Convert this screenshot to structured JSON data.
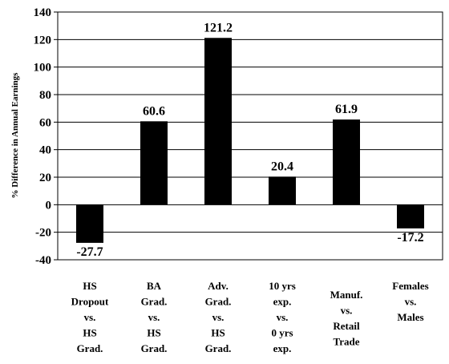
{
  "chart_data": {
    "type": "bar",
    "ylabel": "% Difference in Annual Earnings",
    "ylim": [
      -40,
      140
    ],
    "yticks": [
      "-40",
      "-20",
      "0",
      "20",
      "40",
      "60",
      "80",
      "100",
      "120",
      "140"
    ],
    "grid": "horizontal",
    "bar_color": "#000000",
    "categories": [
      [
        "HS",
        "Dropout",
        "vs.",
        "HS",
        "Grad."
      ],
      [
        "BA",
        "Grad.",
        "vs.",
        "HS",
        "Grad."
      ],
      [
        "Adv.",
        "Grad.",
        "vs.",
        "HS",
        "Grad."
      ],
      [
        "10 yrs",
        "exp.",
        "vs.",
        "0 yrs",
        "exp."
      ],
      [
        "Manuf.",
        "vs.",
        "Retail",
        "Trade"
      ],
      [
        "Females",
        "vs.",
        "Males"
      ]
    ],
    "values": [
      -27.7,
      60.6,
      121.2,
      20.4,
      61.9,
      -17.2
    ],
    "value_labels": [
      "-27.7",
      "60.6",
      "121.2",
      "20.4",
      "61.9",
      "-17.2"
    ]
  }
}
